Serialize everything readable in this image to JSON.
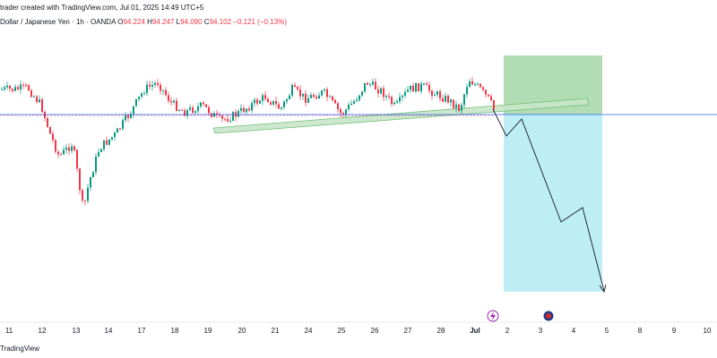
{
  "header": {
    "attribution": "trader created with TradingView.com, Jul 01, 2025 14:49 UTC+5",
    "symbol": "Dollar / Japanese Yen · 1h · OANDA",
    "open_label": "O",
    "open": "94.224",
    "high_label": "H",
    "high": "94.247",
    "low_label": "L",
    "low": "94.090",
    "close_label": "C",
    "close": "94.102",
    "change": "−0.121 (−0.13%)"
  },
  "footer": {
    "brand": "TradingView"
  },
  "colors": {
    "up": "#089981",
    "down": "#f23645",
    "profit_zone": "#a5d6a7",
    "stop_zone": "#b2ebf2",
    "channel": "#c8e6c9",
    "channel_border": "#66bb6a",
    "price_line": "#2962ff",
    "projection": "#131722"
  },
  "x_axis": {
    "ticks": [
      "11",
      "12",
      "13",
      "14",
      "17",
      "18",
      "19",
      "20",
      "21",
      "24",
      "25",
      "26",
      "27",
      "28",
      "Jul",
      "2",
      "3",
      "4",
      "5",
      "8",
      "9",
      "10"
    ]
  },
  "events": [
    {
      "icon": "lightning-event-icon",
      "near": "Jul"
    },
    {
      "icon": "flag-event-icon",
      "near": "3"
    }
  ]
}
